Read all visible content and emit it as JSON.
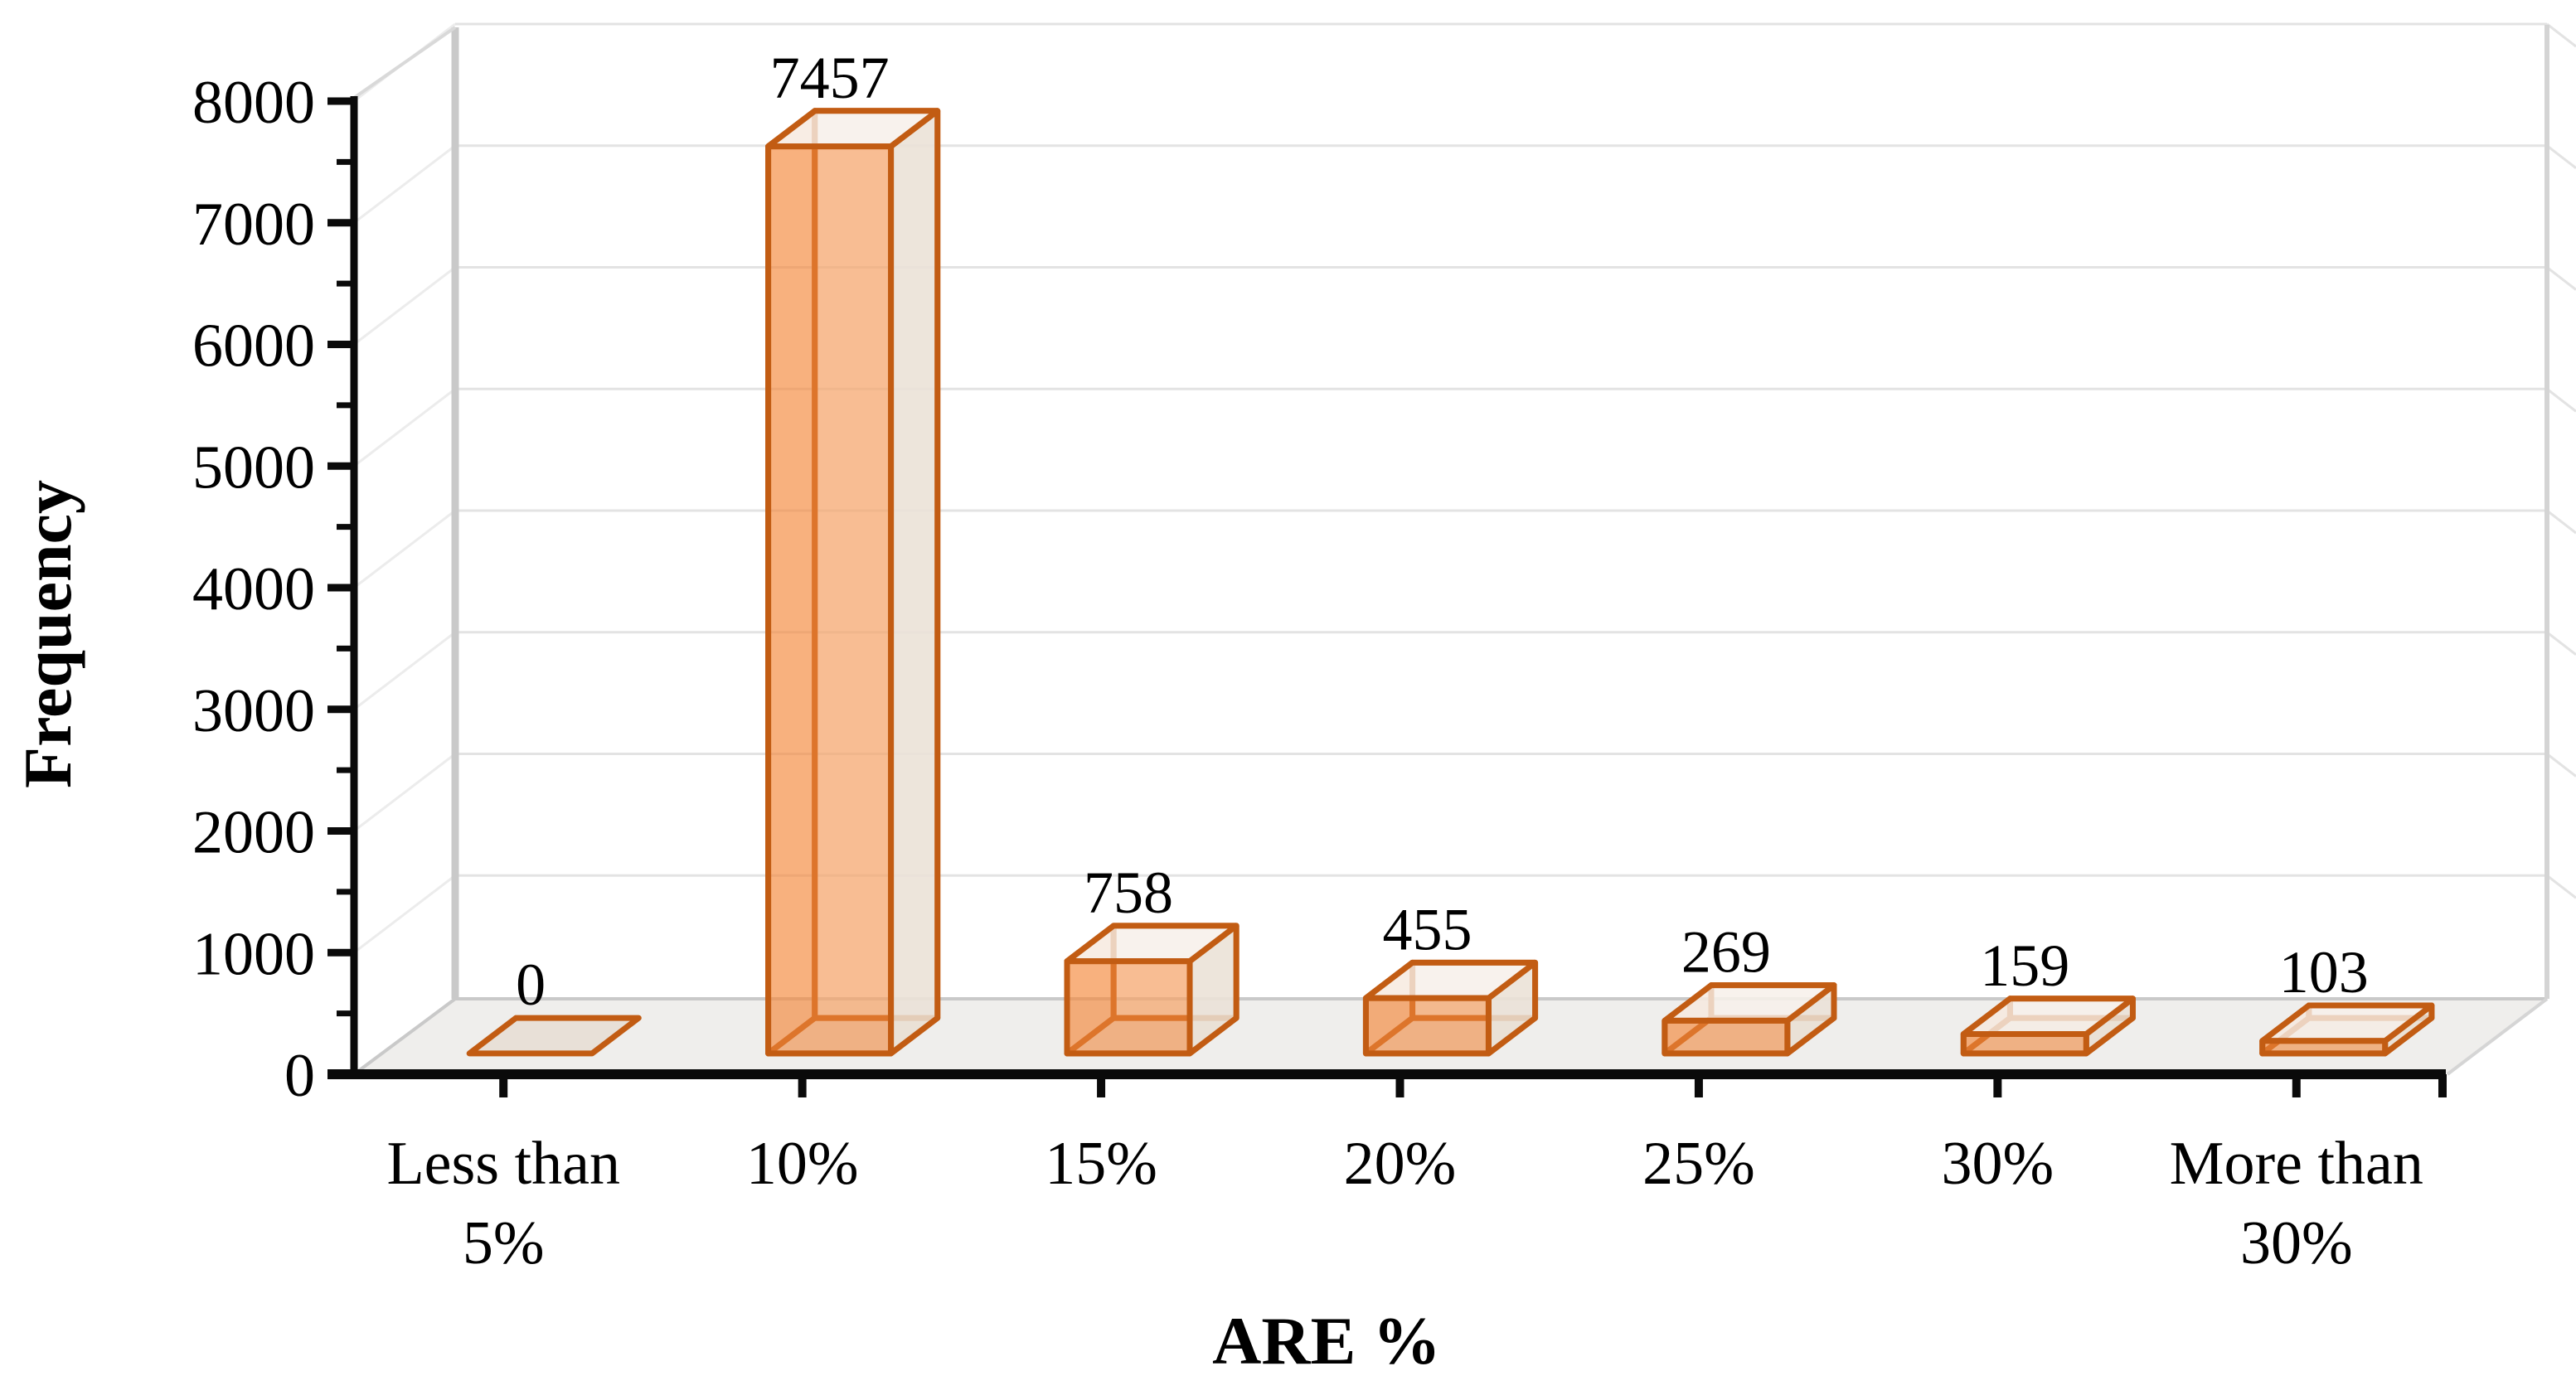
{
  "figure": {
    "y_axis_title": "Frequency",
    "x_axis_title": "ARE %"
  },
  "chart_data": {
    "type": "bar",
    "style": "3d-column-translucent",
    "title": "",
    "xlabel": "ARE %",
    "ylabel": "Frequency",
    "categories": [
      "Less than 5%",
      "10%",
      "15%",
      "20%",
      "25%",
      "30%",
      "More than 30%"
    ],
    "category_label_lines": [
      [
        "Less than",
        "5%"
      ],
      [
        "10%"
      ],
      [
        "15%"
      ],
      [
        "20%"
      ],
      [
        "25%"
      ],
      [
        "30%"
      ],
      [
        "More than",
        "30%"
      ]
    ],
    "values": [
      0,
      7457,
      758,
      455,
      269,
      159,
      103
    ],
    "data_labels": [
      "0",
      "7457",
      "758",
      "455",
      "269",
      "159",
      "103"
    ],
    "ylim": [
      0,
      8000
    ],
    "y_major_step": 1000,
    "y_minor_step": 500,
    "y_tick_labels": [
      "0",
      "1000",
      "2000",
      "3000",
      "4000",
      "5000",
      "6000",
      "7000",
      "8000"
    ],
    "grid": true,
    "legend": false,
    "colors": {
      "bar_edge": "#C25C13",
      "bar_fill_base": "#F48A40",
      "bar_side": "#EAE0D6",
      "bar_top": "#F6F0EA",
      "floor": "#EFEEEC",
      "floor_edge": "#C9C9C9",
      "gridline": "#E3E3E3",
      "wall_diagonal": "#ECECEC",
      "axis": "#0A0A0A",
      "text": "#000000"
    }
  }
}
